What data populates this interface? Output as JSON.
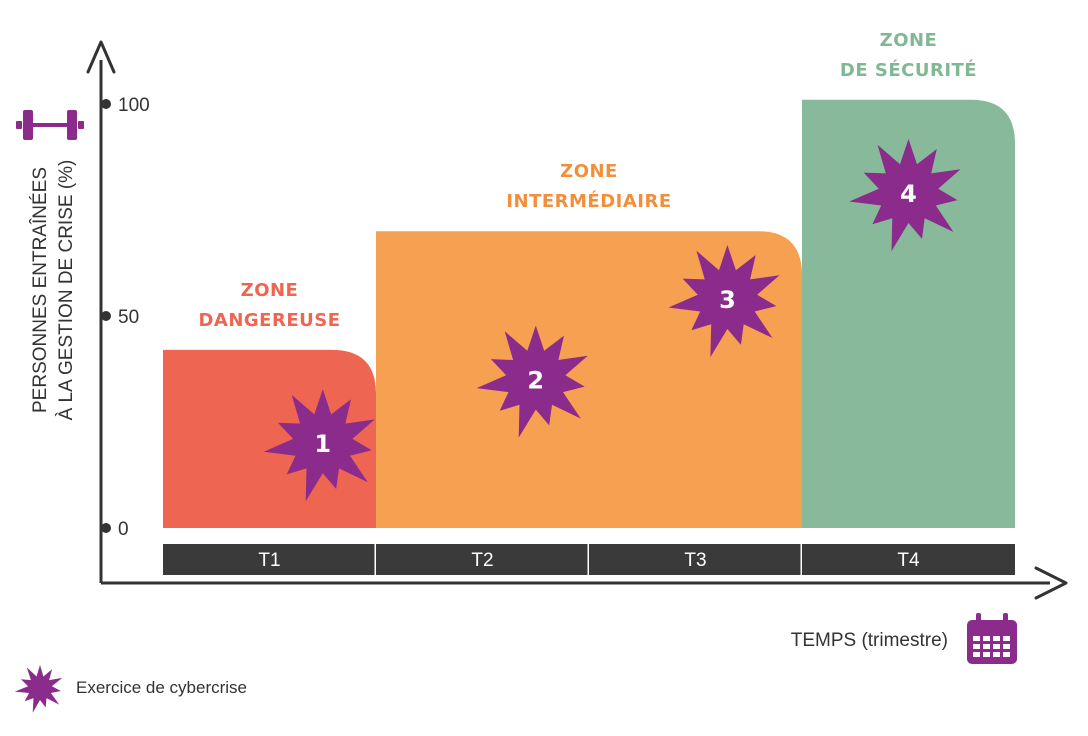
{
  "chart_data": {
    "type": "bar",
    "categories": [
      "T1",
      "T2",
      "T3",
      "T4"
    ],
    "ylabel_lines": [
      "PERSONNES ENTRAÎNÉES",
      "À LA GESTION DE CRISE (%)"
    ],
    "xlabel": "TEMPS (trimestre)",
    "yticks": [
      "0",
      "50",
      "100"
    ],
    "ylim": [
      0,
      100
    ],
    "zones": [
      {
        "title_lines": [
          "ZONE",
          "DANGEREUSE"
        ],
        "start": 0,
        "end": 1,
        "value": 42,
        "color": "#ee6652",
        "title_color": "#ee6652"
      },
      {
        "title_lines": [
          "ZONE",
          "INTERMÉDIAIRE"
        ],
        "start": 1,
        "end": 3,
        "value": 70,
        "color": "#f6a052",
        "title_color": "#f28f3b"
      },
      {
        "title_lines": [
          "ZONE",
          "DE SÉCURITÉ"
        ],
        "start": 3,
        "end": 4,
        "value": 101,
        "color": "#88b99a",
        "title_color": "#80b894"
      }
    ],
    "exercises": [
      {
        "label": "1",
        "x": 0.75,
        "y": 20
      },
      {
        "label": "2",
        "x": 1.75,
        "y": 35
      },
      {
        "label": "3",
        "x": 2.65,
        "y": 54
      },
      {
        "label": "4",
        "x": 3.5,
        "y": 79
      }
    ],
    "legend": {
      "label": "Exercice de cybercrise",
      "position": "bottom-left"
    }
  },
  "colors": {
    "axis": "#333333",
    "period_bar": "#3a3a3a",
    "burst": "#8b2b8b",
    "icon": "#8b2b8b"
  },
  "icons": {
    "y_axis": "dumbbell-icon",
    "x_axis": "calendar-icon",
    "legend": "starburst-icon"
  }
}
